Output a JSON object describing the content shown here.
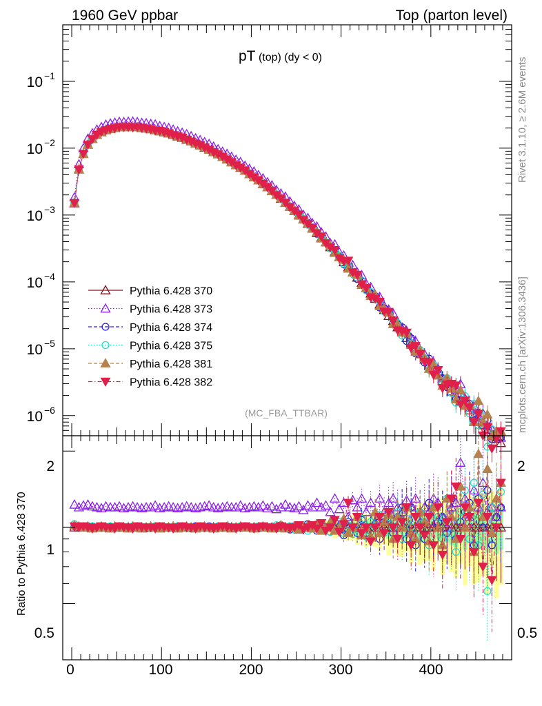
{
  "header": {
    "left": "1960 GeV ppbar",
    "right": "Top (parton level)"
  },
  "title": {
    "main": "pT",
    "sub": " (top) (dy < 0)"
  },
  "analysis_tag": "(MC_FBA_TTBAR)",
  "side_labels": {
    "rivet": "Rivet 3.1.10, ≥ 2.6M events",
    "site": "mcplots.cern.ch [arXiv:1306.3436]"
  },
  "ratio_ylabel": "Ratio to Pythia 6.428 370",
  "main_yticks": [
    {
      "base": "10",
      "exp": "−1",
      "value": 0.1
    },
    {
      "base": "10",
      "exp": "−2",
      "value": 0.01
    },
    {
      "base": "10",
      "exp": "−3",
      "value": 0.001
    },
    {
      "base": "10",
      "exp": "−4",
      "value": 0.0001
    },
    {
      "base": "10",
      "exp": "−5",
      "value": 1e-05
    },
    {
      "base": "10",
      "exp": "−6",
      "value": 1e-06
    }
  ],
  "ratio_yticks": [
    "2",
    "1",
    "0.5"
  ],
  "xticks": [
    "0",
    "100",
    "200",
    "300",
    "400"
  ],
  "colors": {
    "370": "#8b0f1c",
    "373": "#8a1ee6",
    "374": "#2a1ed8",
    "375": "#1fe0c8",
    "381": "#b5824e",
    "382": "#e0204a",
    "band_yellow": "#ffff99",
    "band_green": "#99ff99"
  },
  "chart_data": {
    "type": "scatter",
    "xlim": [
      -10,
      490
    ],
    "main_ylim": [
      5e-07,
      0.7
    ],
    "main_yscale": "log",
    "ratio_ylim": [
      0.3,
      2.3
    ],
    "ratio_yscale": "log",
    "x": [
      3,
      8,
      13,
      18,
      23,
      28,
      33,
      38,
      43,
      48,
      53,
      58,
      63,
      68,
      73,
      78,
      83,
      88,
      93,
      98,
      103,
      108,
      113,
      118,
      123,
      128,
      133,
      138,
      143,
      148,
      153,
      158,
      163,
      168,
      173,
      178,
      183,
      188,
      193,
      198,
      203,
      208,
      213,
      218,
      223,
      228,
      233,
      238,
      243,
      248,
      253,
      258,
      263,
      268,
      273,
      278,
      283,
      288,
      293,
      298,
      303,
      308,
      313,
      318,
      323,
      328,
      333,
      338,
      343,
      348,
      353,
      358,
      363,
      368,
      373,
      378,
      383,
      388,
      393,
      398,
      403,
      408,
      413,
      418,
      423,
      428,
      433,
      438,
      443,
      448,
      453,
      458,
      463,
      468,
      473,
      478
    ],
    "reference_values": [
      0.0015,
      0.0048,
      0.0082,
      0.0113,
      0.0138,
      0.0158,
      0.0174,
      0.0186,
      0.0195,
      0.0201,
      0.0205,
      0.0207,
      0.0208,
      0.0207,
      0.0205,
      0.0201,
      0.0197,
      0.0192,
      0.0186,
      0.018,
      0.0173,
      0.0166,
      0.0158,
      0.015,
      0.0142,
      0.0134,
      0.0126,
      0.0118,
      0.011,
      0.0102,
      0.0095,
      0.0088,
      0.0081,
      0.0074,
      0.0068,
      0.0062,
      0.0056,
      0.0051,
      0.0046,
      0.0041,
      0.0037,
      0.0033,
      0.0029,
      0.0026,
      0.0023,
      0.002,
      0.00175,
      0.00153,
      0.00133,
      0.00115,
      0.001,
      0.00086,
      0.00074,
      0.00063,
      0.00054,
      0.00046,
      0.00039,
      0.00033,
      0.00028,
      0.000235,
      0.000198,
      0.000166,
      0.000139,
      0.000116,
      9.7e-05,
      8.1e-05,
      6.7e-05,
      5.6e-05,
      4.6e-05,
      3.8e-05,
      3.1e-05,
      2.6e-05,
      2.1e-05,
      1.75e-05,
      1.45e-05,
      1.2e-05,
      1e-05,
      8.3e-06,
      6.9e-06,
      5.7e-06,
      4.8e-06,
      4e-06,
      3.3e-06,
      2.8e-06,
      2.3e-06,
      1.95e-06,
      1.65e-06,
      1.4e-06,
      1.2e-06,
      1e-06,
      8.5e-07,
      7.2e-07,
      6.1e-07,
      5.2e-07,
      4.5e-07,
      3.9e-07
    ],
    "series": [
      {
        "name": "Pythia 6.428 370",
        "marker": "triangle-up-open",
        "line": "solid",
        "ratio": [
          1.0,
          1.0,
          1.0,
          1.0,
          1.0,
          1.0,
          1.0,
          1.0,
          1.0,
          1.0,
          1.0,
          1.0,
          1.0,
          1.0,
          1.0,
          1.0,
          1.0,
          1.0,
          1.0,
          1.0,
          1.0,
          1.0,
          1.0,
          1.0,
          1.0,
          1.0,
          1.0,
          1.0,
          1.0,
          1.0,
          1.0,
          1.0,
          1.0,
          1.0,
          1.0,
          1.0,
          1.0,
          1.0,
          1.0,
          1.0,
          1.0,
          1.0,
          1.0,
          1.0,
          1.0,
          1.0,
          1.0,
          1.0,
          1.0,
          1.0,
          1.0,
          1.0,
          1.0,
          1.0,
          1.0,
          1.0,
          1.0,
          1.0,
          1.0,
          1.0,
          1.0,
          1.0,
          1.0,
          1.0,
          1.0,
          1.0,
          1.0,
          1.0,
          1.0,
          1.0,
          1.0,
          1.0,
          1.0,
          1.0,
          1.0,
          1.0,
          1.0,
          1.0,
          1.0,
          1.0,
          1.0,
          1.0,
          1.0,
          1.0,
          1.0,
          1.0,
          1.0,
          1.0,
          1.0,
          1.0,
          1.0,
          1.0,
          1.0,
          1.0,
          1.0,
          1.0
        ]
      },
      {
        "name": "Pythia 6.428 373",
        "marker": "triangle-up-open",
        "line": "dotted",
        "ratio": [
          1.23,
          1.2,
          1.22,
          1.23,
          1.21,
          1.2,
          1.19,
          1.21,
          1.2,
          1.2,
          1.21,
          1.19,
          1.2,
          1.21,
          1.2,
          1.19,
          1.2,
          1.2,
          1.22,
          1.19,
          1.2,
          1.21,
          1.2,
          1.19,
          1.2,
          1.21,
          1.2,
          1.19,
          1.2,
          1.21,
          1.22,
          1.2,
          1.19,
          1.2,
          1.21,
          1.2,
          1.2,
          1.22,
          1.19,
          1.2,
          1.21,
          1.2,
          1.22,
          1.19,
          1.21,
          1.18,
          1.2,
          1.23,
          1.2,
          1.19,
          1.21,
          1.17,
          1.22,
          1.2,
          1.25,
          1.2,
          1.22,
          1.15,
          1.3,
          1.18,
          1.25,
          1.1,
          1.28,
          1.2,
          1.3,
          1.15,
          1.25,
          1.05,
          1.3,
          1.15,
          1.25,
          1.3,
          1.2,
          1.15,
          1.28,
          1.2,
          1.3,
          1.05,
          1.2,
          1.15,
          1.3,
          1.25,
          1.1,
          1.0,
          1.2,
          1.25,
          1.8,
          1.3,
          1.1,
          1.4,
          1.2,
          1.5,
          1.15,
          1.2,
          1.1,
          1.2
        ]
      },
      {
        "name": "Pythia 6.428 374",
        "marker": "circle-open",
        "line": "dashed",
        "ratio": [
          1.01,
          1.0,
          1.0,
          1.01,
          0.99,
          1.0,
          1.01,
          1.0,
          0.99,
          1.0,
          1.01,
          1.0,
          0.99,
          1.0,
          1.01,
          1.0,
          0.99,
          1.0,
          1.0,
          1.01,
          1.0,
          0.99,
          1.0,
          1.01,
          1.0,
          1.0,
          0.99,
          1.01,
          1.0,
          1.0,
          1.01,
          0.99,
          1.0,
          1.0,
          1.01,
          1.0,
          0.99,
          1.0,
          1.01,
          1.0,
          1.0,
          0.99,
          1.01,
          1.0,
          1.0,
          0.99,
          1.02,
          1.0,
          0.98,
          1.01,
          1.0,
          0.99,
          1.03,
          1.0,
          0.97,
          1.02,
          1.0,
          0.96,
          1.05,
          1.0,
          0.93,
          1.05,
          1.0,
          0.95,
          1.07,
          0.95,
          1.0,
          1.1,
          0.9,
          1.05,
          1.15,
          0.95,
          1.1,
          1.2,
          0.9,
          1.2,
          0.85,
          1.15,
          0.9,
          1.25,
          1.0,
          1.05,
          1.1,
          0.95,
          1.3,
          0.9,
          1.05,
          1.15,
          1.25,
          0.85,
          1.3,
          1.0,
          1.4,
          0.85,
          1.1,
          1.2
        ]
      },
      {
        "name": "Pythia 6.428 375",
        "marker": "circle-open",
        "line": "dotted",
        "ratio": [
          1.03,
          1.01,
          1.0,
          0.99,
          1.01,
          1.0,
          0.99,
          1.0,
          1.01,
          1.0,
          0.99,
          1.0,
          1.0,
          1.01,
          0.99,
          1.0,
          1.0,
          0.99,
          1.01,
          1.0,
          1.0,
          0.99,
          1.0,
          1.01,
          1.0,
          0.99,
          1.0,
          1.0,
          1.01,
          0.99,
          1.0,
          1.0,
          1.01,
          0.99,
          1.0,
          1.0,
          0.99,
          1.01,
          1.0,
          1.0,
          0.99,
          1.01,
          1.0,
          0.99,
          1.0,
          1.02,
          0.99,
          1.0,
          1.01,
          0.98,
          1.0,
          1.02,
          0.97,
          1.0,
          1.03,
          0.98,
          1.0,
          0.96,
          1.0,
          1.05,
          0.95,
          1.02,
          0.94,
          1.0,
          1.08,
          0.92,
          1.05,
          1.0,
          1.12,
          0.95,
          1.1,
          1.0,
          1.15,
          0.9,
          1.2,
          1.0,
          0.92,
          1.15,
          1.05,
          0.85,
          1.2,
          1.1,
          0.9,
          1.3,
          0.95,
          0.8,
          1.15,
          1.4,
          0.9,
          1.5,
          0.85,
          1.35,
          0.56,
          1.2,
          1.25,
          1.38
        ]
      },
      {
        "name": "Pythia 6.428 381",
        "marker": "triangle-up-filled",
        "line": "dashed",
        "ratio": [
          1.02,
          1.01,
          1.0,
          1.01,
          0.99,
          1.0,
          1.01,
          1.0,
          0.99,
          1.01,
          1.0,
          1.0,
          0.99,
          1.01,
          1.0,
          0.99,
          1.0,
          1.01,
          1.0,
          0.99,
          1.0,
          1.0,
          1.01,
          0.99,
          1.0,
          1.01,
          1.0,
          0.99,
          1.0,
          1.01,
          1.0,
          0.99,
          1.0,
          1.0,
          1.01,
          0.99,
          1.0,
          1.01,
          1.0,
          1.0,
          0.99,
          1.0,
          1.01,
          1.0,
          0.99,
          1.0,
          1.02,
          0.99,
          1.0,
          1.01,
          0.98,
          1.0,
          1.02,
          0.99,
          1.03,
          0.97,
          1.0,
          1.05,
          0.97,
          1.0,
          1.08,
          0.95,
          1.0,
          1.1,
          0.93,
          1.0,
          0.92,
          1.15,
          0.95,
          1.05,
          1.12,
          0.9,
          1.1,
          1.0,
          1.2,
          0.95,
          0.9,
          1.15,
          1.05,
          0.88,
          1.2,
          1.0,
          0.85,
          1.3,
          1.1,
          0.9,
          1.45,
          1.0,
          1.2,
          0.8,
          1.95,
          1.1,
          1.7,
          0.95,
          1.3,
          1.5
        ]
      },
      {
        "name": "Pythia 6.428 382",
        "marker": "triangle-down-filled",
        "line": "dashdot",
        "ratio": [
          1.01,
          1.0,
          1.01,
          1.0,
          0.99,
          1.0,
          1.01,
          1.0,
          1.0,
          0.99,
          1.01,
          1.0,
          1.0,
          0.99,
          1.01,
          1.0,
          1.0,
          1.0,
          0.99,
          1.01,
          1.0,
          1.0,
          0.99,
          1.0,
          1.01,
          1.0,
          1.0,
          0.99,
          1.01,
          1.0,
          1.0,
          0.99,
          1.0,
          1.01,
          1.0,
          1.0,
          0.99,
          1.0,
          1.01,
          1.0,
          0.99,
          1.0,
          1.01,
          1.0,
          1.0,
          0.99,
          1.01,
          1.0,
          0.99,
          1.0,
          1.02,
          0.98,
          1.0,
          1.02,
          0.99,
          1.04,
          0.97,
          1.0,
          1.07,
          0.96,
          1.03,
          1.25,
          1.0,
          1.1,
          0.95,
          1.0,
          0.88,
          1.0,
          1.1,
          0.95,
          1.15,
          1.0,
          0.9,
          1.05,
          1.2,
          0.85,
          1.1,
          1.0,
          0.93,
          1.1,
          0.85,
          1.2,
          0.78,
          1.05,
          1.3,
          1.45,
          0.9,
          1.2,
          1.1,
          0.8,
          1.25,
          0.7,
          1.1,
          0.62,
          1.0,
          1.5
        ]
      }
    ]
  }
}
